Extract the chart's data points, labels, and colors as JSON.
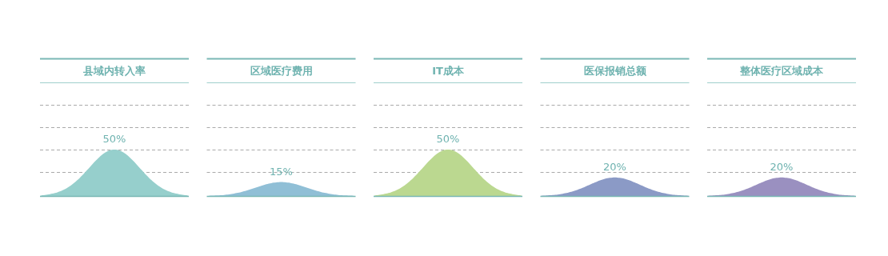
{
  "chart_data": {
    "type": "other",
    "categories": [
      "县域内转入率",
      "区域医疗费用",
      "IT成本",
      "医保报销总额",
      "整体医疗区域成本"
    ],
    "values": [
      50,
      15,
      50,
      20,
      20
    ],
    "value_labels": [
      "50%",
      "15%",
      "50%",
      "20%",
      "20%"
    ],
    "colors": [
      "#96cfcc",
      "#90bfd6",
      "#bbd890",
      "#8b9ac6",
      "#9a90c0"
    ]
  }
}
